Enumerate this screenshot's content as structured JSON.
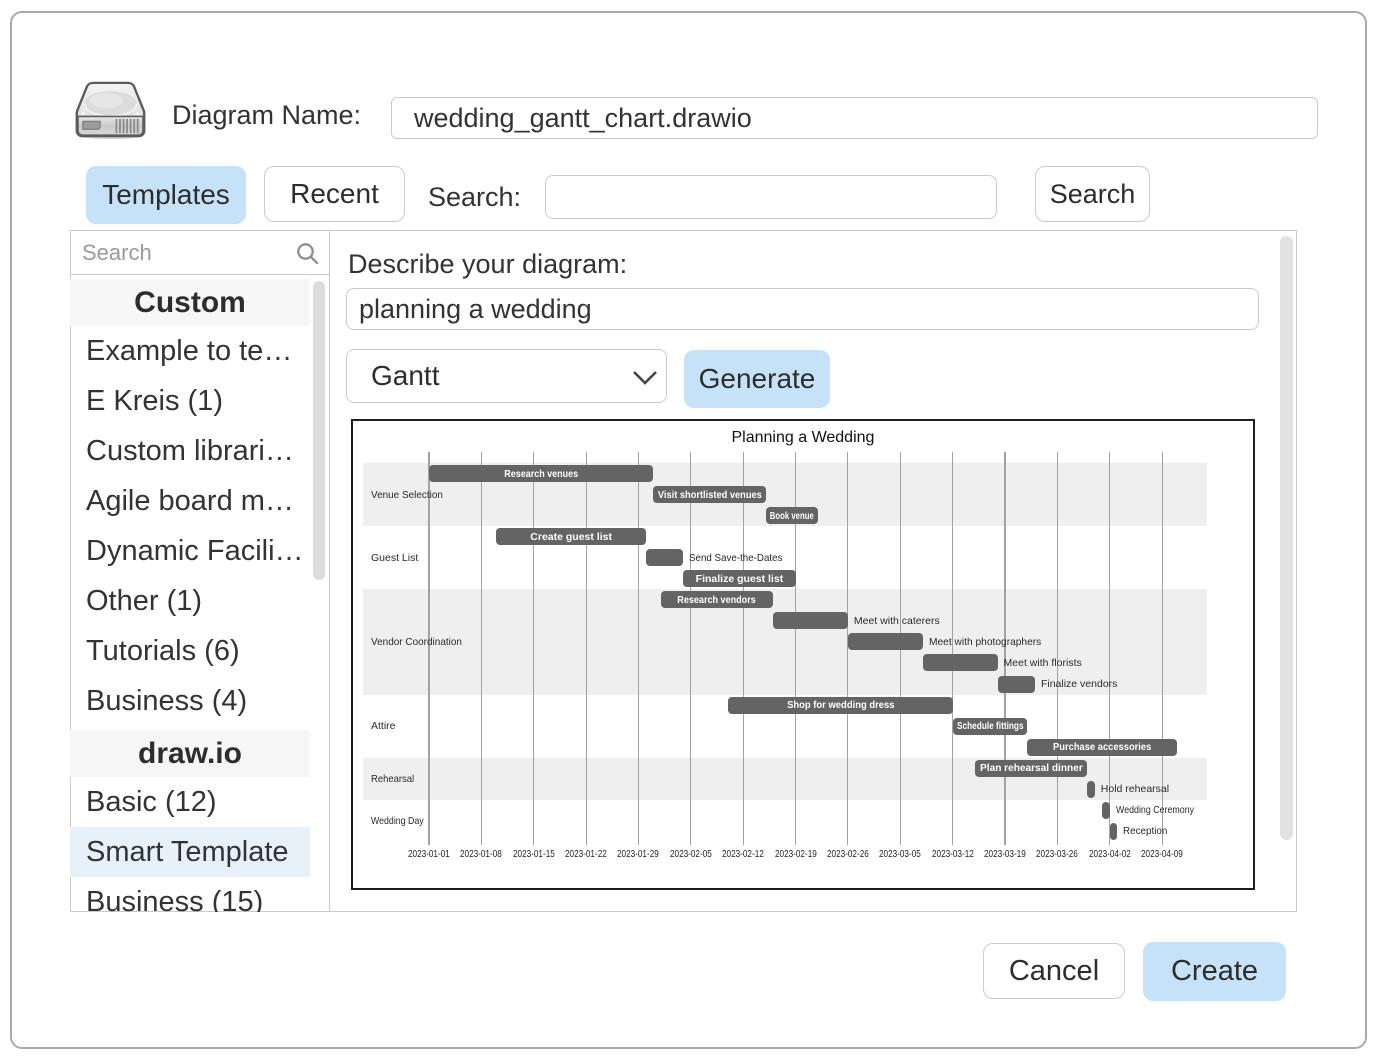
{
  "dialog": {
    "diagram_name_label": "Diagram Name:",
    "diagram_name_value": "wedding_gantt_chart.drawio",
    "templates_tab": "Templates",
    "recent_tab": "Recent",
    "search_label": "Search:",
    "search_value": "",
    "search_button": "Search",
    "cancel_button": "Cancel",
    "create_button": "Create",
    "accent_color": "#c5e2f8"
  },
  "sidebar": {
    "search_placeholder": "Search",
    "groups": [
      {
        "header": "Custom",
        "items": [
          "Example to te…",
          "E Kreis (1)",
          "Custom librari…",
          "Agile board m…",
          "Dynamic Facili…",
          "Other (1)",
          "Tutorials (6)",
          "Business (4)"
        ]
      },
      {
        "header": "draw.io",
        "items": [
          "Basic (12)",
          "Smart Template",
          "Business (15)"
        ],
        "selected_item": "Smart Template"
      }
    ]
  },
  "main": {
    "describe_label": "Describe your diagram:",
    "describe_value": "planning a wedding",
    "diagram_type_value": "Gantt",
    "generate_button": "Generate"
  },
  "chart_data": {
    "type": "gantt",
    "title": "Planning a Wedding",
    "x_ticks": [
      "2023-01-01",
      "2023-01-08",
      "2023-01-15",
      "2023-01-22",
      "2023-01-29",
      "2023-02-05",
      "2023-02-12",
      "2023-02-19",
      "2023-02-26",
      "2023-03-05",
      "2023-03-12",
      "2023-03-19",
      "2023-03-26",
      "2023-04-02",
      "2023-04-09"
    ],
    "grid": true,
    "band_color": "#efefef",
    "bar_color": "#646464",
    "categories": [
      {
        "name": "Venue Selection",
        "tasks": [
          {
            "label": "Research venues",
            "start": "2023-01-01",
            "end": "2023-01-31",
            "label_pos": "inside"
          },
          {
            "label": "Visit shortlisted venues",
            "start": "2023-01-31",
            "end": "2023-02-15",
            "label_pos": "inside"
          },
          {
            "label": "Book venue",
            "start": "2023-02-15",
            "end": "2023-02-22",
            "label_pos": "inside"
          }
        ]
      },
      {
        "name": "Guest List",
        "tasks": [
          {
            "label": "Create guest list",
            "start": "2023-01-10",
            "end": "2023-01-30",
            "label_pos": "inside"
          },
          {
            "label": "Send Save-the-Dates",
            "start": "2023-01-30",
            "end": "2023-02-04",
            "label_pos": "right"
          },
          {
            "label": "Finalize guest list",
            "start": "2023-02-04",
            "end": "2023-02-19",
            "label_pos": "inside"
          }
        ]
      },
      {
        "name": "Vendor Coordination",
        "tasks": [
          {
            "label": "Research vendors",
            "start": "2023-02-01",
            "end": "2023-02-16",
            "label_pos": "inside"
          },
          {
            "label": "Meet with caterers",
            "start": "2023-02-16",
            "end": "2023-02-26",
            "label_pos": "right"
          },
          {
            "label": "Meet with photographers",
            "start": "2023-02-26",
            "end": "2023-03-08",
            "label_pos": "right"
          },
          {
            "label": "Meet with florists",
            "start": "2023-03-08",
            "end": "2023-03-18",
            "label_pos": "right"
          },
          {
            "label": "Finalize vendors",
            "start": "2023-03-18",
            "end": "2023-03-23",
            "label_pos": "right"
          }
        ]
      },
      {
        "name": "Attire",
        "tasks": [
          {
            "label": "Shop for wedding dress",
            "start": "2023-02-10",
            "end": "2023-03-12",
            "label_pos": "inside"
          },
          {
            "label": "Schedule fittings",
            "start": "2023-03-12",
            "end": "2023-03-22",
            "label_pos": "inside"
          },
          {
            "label": "Purchase accessories",
            "start": "2023-03-22",
            "end": "2023-04-11",
            "label_pos": "inside"
          }
        ]
      },
      {
        "name": "Rehearsal",
        "tasks": [
          {
            "label": "Plan rehearsal dinner",
            "start": "2023-03-15",
            "end": "2023-03-30",
            "label_pos": "inside"
          },
          {
            "label": "Hold rehearsal",
            "start": "2023-03-30",
            "end": "2023-03-31",
            "label_pos": "right"
          }
        ]
      },
      {
        "name": "Wedding Day",
        "tasks": [
          {
            "label": "Wedding Ceremony",
            "start": "2023-04-01",
            "end": "2023-04-02",
            "label_pos": "right"
          },
          {
            "label": "Reception",
            "start": "2023-04-02",
            "end": "2023-04-03",
            "label_pos": "right"
          }
        ]
      }
    ]
  }
}
